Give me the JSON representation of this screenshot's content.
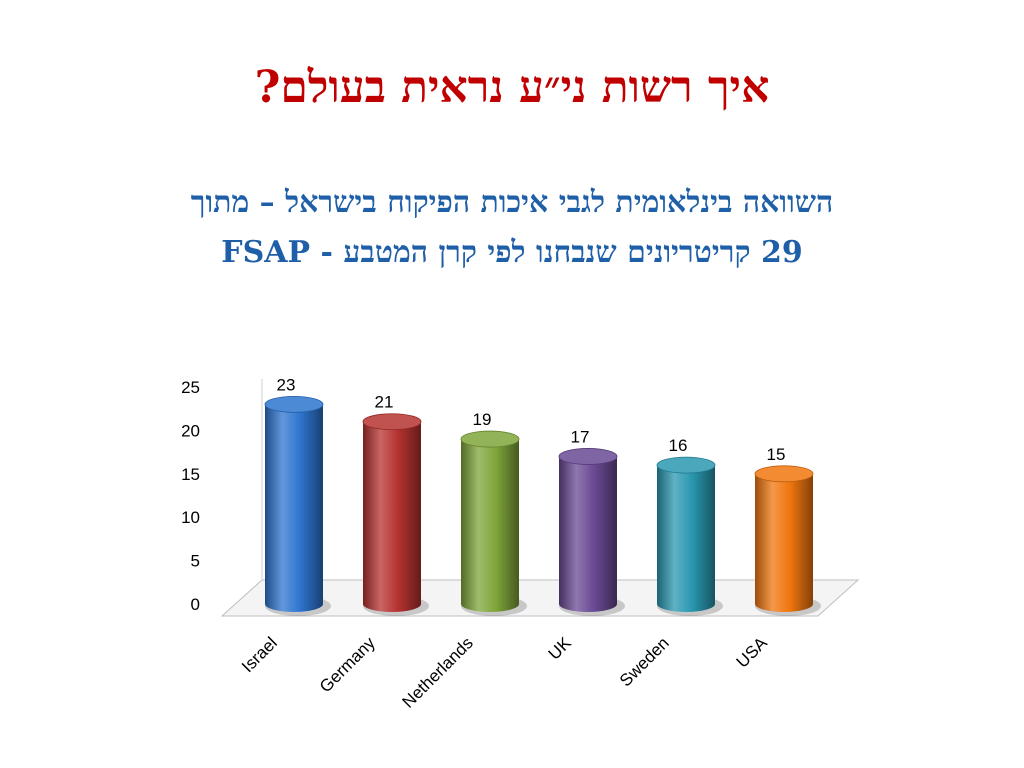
{
  "slide": {
    "title": "איך רשות ני״ע נראית בעולם?",
    "subtitle_line1": "השוואה בינלאומית לגבי איכות הפיקוח בישראל – מתוך",
    "subtitle_line2": "29 קריטריונים שנבחנו לפי קרן המטבע - FSAP"
  },
  "colors": {
    "title": "#c00000",
    "subtitle": "#1f5fa8"
  },
  "chart_data": {
    "type": "bar",
    "style": "3d-cylinder",
    "categories": [
      "Israel",
      "Germany",
      "Netherlands",
      "UK",
      "Sweden",
      "USA"
    ],
    "values": [
      23,
      21,
      19,
      17,
      16,
      15
    ],
    "colors": [
      "#2e75cf",
      "#b53330",
      "#7fa53a",
      "#6a4a94",
      "#2a98b0",
      "#f0760e"
    ],
    "ylim": [
      0,
      25
    ],
    "yticks": [
      0,
      5,
      10,
      15,
      20,
      25
    ],
    "title": "",
    "xlabel": "",
    "ylabel": "",
    "grid": false,
    "legend": "none",
    "data_labels": true
  }
}
